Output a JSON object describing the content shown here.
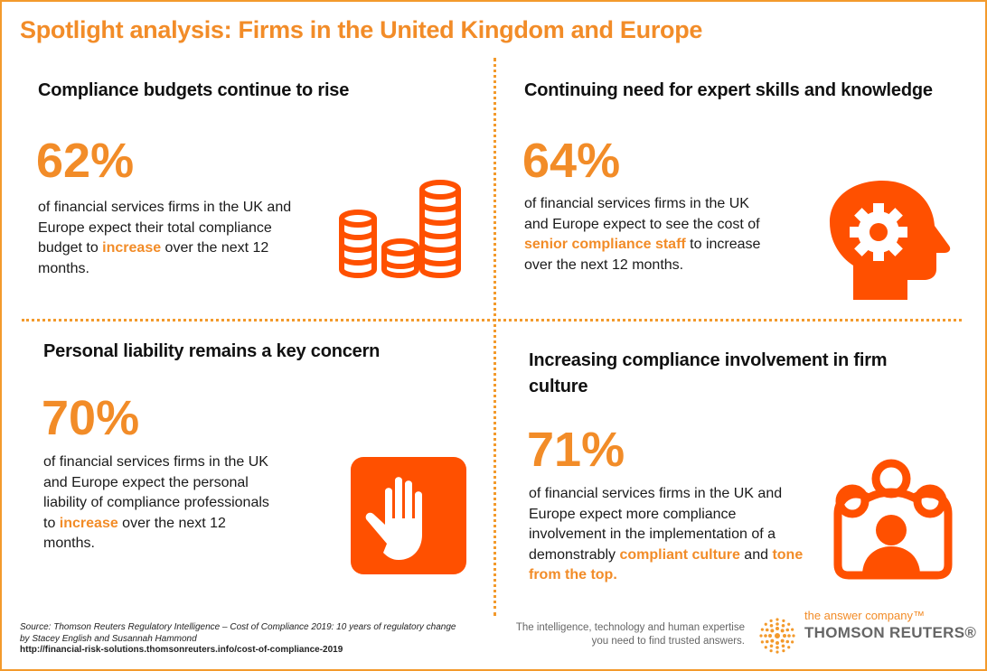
{
  "title": "Spotlight analysis: Firms in the United Kingdom and Europe",
  "colors": {
    "accent": "#f28c28",
    "icon": "#ff5000",
    "border": "#f39a2c"
  },
  "panels": [
    {
      "heading": "Compliance budgets continue to rise",
      "percent": "62%",
      "text_before": "of financial services firms in the UK and Europe expect their total compliance budget to ",
      "highlight": "increase",
      "text_after": " over the next 12 months.",
      "icon": "coin-stacks-icon"
    },
    {
      "heading": "Continuing need for expert skills and knowledge",
      "percent": "64%",
      "text_before": "of financial services firms in the UK and Europe expect to see the cost of ",
      "highlight": "senior compliance staff",
      "text_after": " to increase over the next 12 months.",
      "icon": "head-gear-icon"
    },
    {
      "heading": "Personal liability remains a key concern",
      "percent": "70%",
      "text_before": "of financial services firms in the UK and Europe expect the personal liability of compliance professionals to ",
      "highlight": "increase",
      "text_after": " over the next 12 months.",
      "icon": "raised-hand-icon"
    },
    {
      "heading": "Increasing compliance involvement in firm culture",
      "percent": "71%",
      "text_before": "of financial services firms in the UK and Europe expect more compliance involvement in the implementation of a demonstrably ",
      "highlight": "compliant culture",
      "text_mid": " and ",
      "highlight2": "tone from the top.",
      "icon": "group-people-icon"
    }
  ],
  "footer": {
    "source": "Source: Thomson Reuters Regulatory Intelligence – Cost of Compliance 2019: 10 years of regulatory change",
    "authors": "by Stacey English and Susannah Hammond",
    "url": "http://financial-risk-solutions.thomsonreuters.info/cost-of-compliance-2019",
    "tagline1": "The intelligence, technology and human expertise",
    "tagline2": "you need to find trusted answers.",
    "answer_company": "the answer company™",
    "brand": "THOMSON REUTERS®"
  }
}
